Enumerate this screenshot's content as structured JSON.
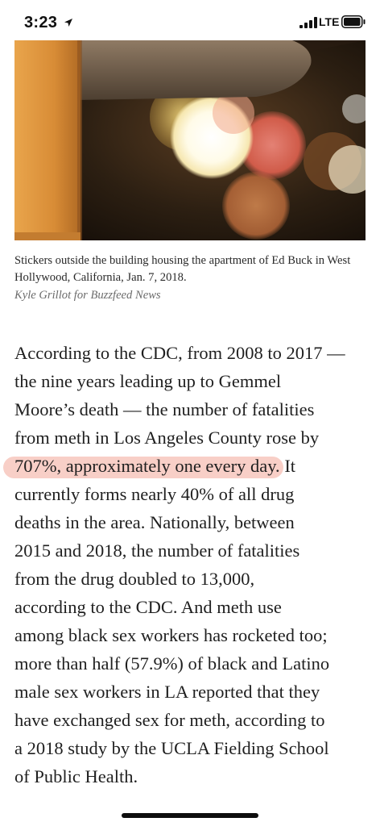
{
  "status_bar": {
    "time": "3:23",
    "network": "LTE"
  },
  "photo": {
    "icon": "stickers-photo"
  },
  "caption": {
    "text": "Stickers outside the building housing the apartment of Ed Buck in West Hollywood, California, Jan. 7, 2018.",
    "credit": "Kyle Grillot for Buzzfeed News"
  },
  "article": {
    "lines": [
      "According to the CDC, from 2008 to 2017 —",
      "the nine years leading up to Gemmel",
      "Moore’s death — the number of fatalities",
      "from meth in Los Angeles County rose by",
      "currently forms nearly 40% of all drug",
      "deaths in the area. Nationally, between",
      "2015 and 2018, the number of fatalities",
      "from the drug doubled to 13,000,",
      "according to the CDC. And meth use",
      "among black sex workers has rocketed too;",
      "more than half (57.9%) of black and Latino",
      "male sex workers in LA reported that they",
      "have exchanged sex for meth, according to",
      "a 2018 study by the UCLA Fielding School",
      "of Public Health."
    ],
    "highlighted": "707%, approximately one every day.",
    "after_highlight": " It",
    "highlight_color": "#f8cfc7"
  }
}
